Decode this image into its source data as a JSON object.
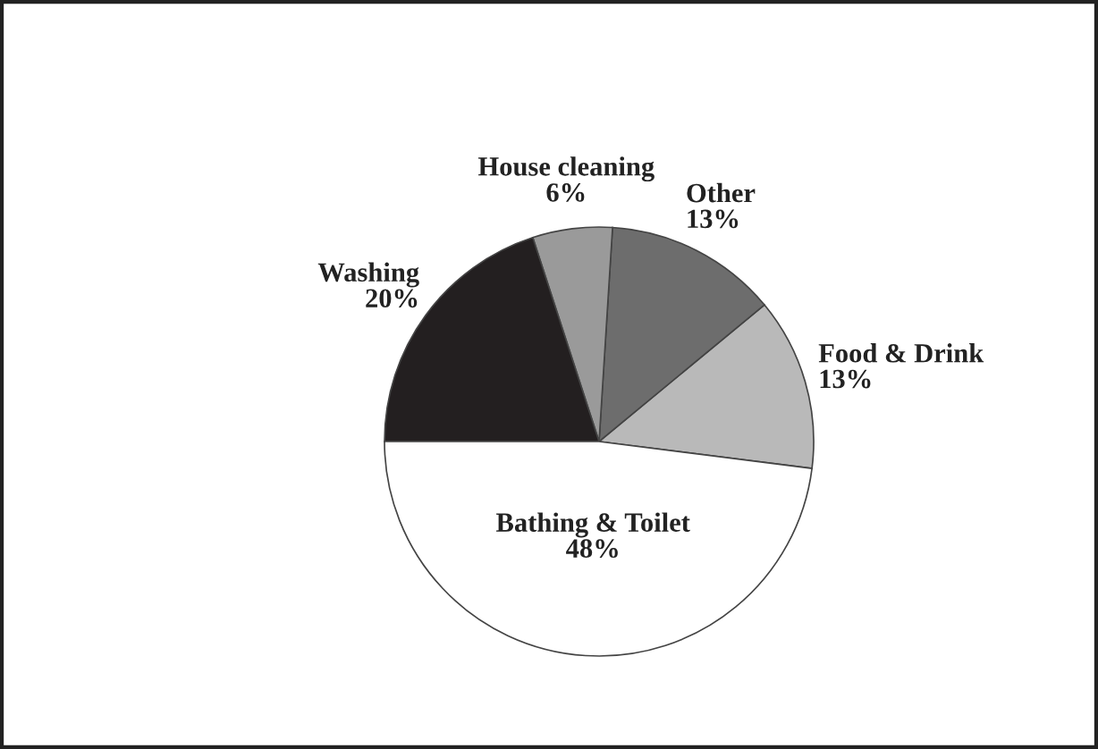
{
  "chart_data": {
    "type": "pie",
    "categories": [
      "Food & Drink",
      "Other",
      "House cleaning",
      "Washing",
      "Bathing & Toilet"
    ],
    "values": [
      13,
      13,
      6,
      20,
      48
    ],
    "colors": [
      "#b9b9b9",
      "#6d6d6d",
      "#9a9a9a",
      "#231f20",
      "#ffffff"
    ],
    "value_labels": [
      "13%",
      "13%",
      "6%",
      "20%",
      "48%"
    ]
  }
}
